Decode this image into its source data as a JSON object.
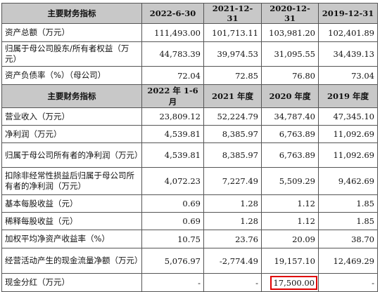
{
  "highlight_color": "#e00000",
  "header_bg": "#c8c8c8",
  "section1": {
    "columns": [
      "主要财务指标",
      "2022-6-30",
      "2021-12-31",
      "2020-12-31",
      "2019-12-31"
    ],
    "rows": [
      {
        "label": "资产总额（万元）",
        "values": [
          "111,493.00",
          "101,713.11",
          "103,981.20",
          "102,401.89"
        ]
      },
      {
        "label": "归属于母公司股东/所有者权益（万元）",
        "values": [
          "44,783.39",
          "39,974.53",
          "31,095.55",
          "34,439.13"
        ]
      },
      {
        "label": "资产负债率（%）（母公司）",
        "values": [
          "72.04",
          "72.85",
          "76.80",
          "73.04"
        ]
      }
    ]
  },
  "section2": {
    "columns": [
      "主要财务指标",
      "2022 年 1-6 月",
      "2021 年度",
      "2020 年度",
      "2019 年度"
    ],
    "rows": [
      {
        "label": "营业收入（万元）",
        "values": [
          "23,809.12",
          "52,224.79",
          "34,787.40",
          "47,345.10"
        ]
      },
      {
        "label": "净利润（万元）",
        "values": [
          "4,539.81",
          "8,385.97",
          "6,763.89",
          "11,092.69"
        ]
      },
      {
        "label": "归属于母公司所有者的净利润（万元）",
        "values": [
          "4,539.81",
          "8,385.97",
          "6,763.89",
          "11,092.69"
        ]
      },
      {
        "label": "扣除非经常性损益后归属于母公司所有者的净利润（万元）",
        "values": [
          "4,072.23",
          "7,227.49",
          "5,509.29",
          "9,462.69"
        ]
      },
      {
        "label": "基本每股收益（元）",
        "values": [
          "0.69",
          "1.28",
          "1.12",
          "1.85"
        ]
      },
      {
        "label": "稀释每股收益（元）",
        "values": [
          "0.69",
          "1.28",
          "1.12",
          "1.85"
        ]
      },
      {
        "label": "加权平均净资产收益率（%）",
        "values": [
          "10.75",
          "23.76",
          "20.09",
          "38.70"
        ]
      },
      {
        "label": "经营活动产生的现金流量净额（万元）",
        "values": [
          "5,076.97",
          "-2,774.49",
          "19,157.10",
          "12,469.29"
        ]
      },
      {
        "label": "现金分红（万元）",
        "values": [
          "-",
          "-",
          "17,500.00",
          "-"
        ],
        "highlight": 2
      }
    ]
  }
}
